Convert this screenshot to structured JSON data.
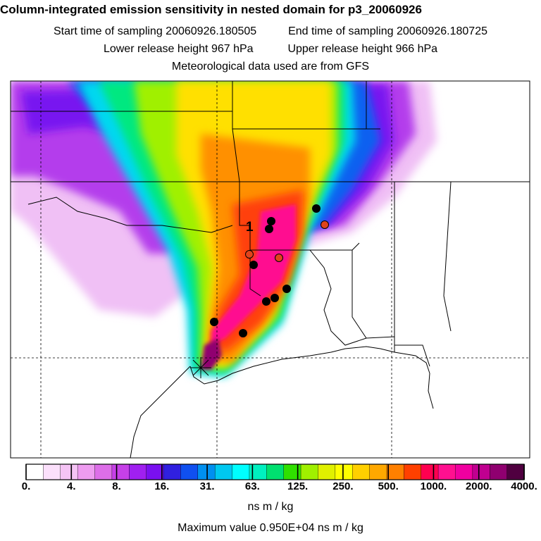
{
  "header": {
    "title": "Column-integrated emission sensitivity in nested domain for p3_20060926",
    "start_label": "Start time of sampling 20060926.180505",
    "end_label": "End time of sampling 20060926.180725",
    "lower_label": "Lower release height  967 hPa",
    "upper_label": "Upper release height  966 hPa",
    "met_label": "Meteorological data used are from GFS"
  },
  "map": {
    "marker_label": "1",
    "receptor_colors": {
      "black": "#000000",
      "red": "#e0441c"
    }
  },
  "colorbar": {
    "colors": [
      "#ffffff",
      "#fbe0fb",
      "#f5c4f5",
      "#ee9cf0",
      "#dd6ee8",
      "#c640e8",
      "#a020f0",
      "#7a10f0",
      "#3020e0",
      "#1050f0",
      "#0090f0",
      "#00c8f0",
      "#00ffff",
      "#00f0c0",
      "#00e070",
      "#30e000",
      "#a0f000",
      "#e0f000",
      "#ffff00",
      "#ffd000",
      "#ffa800",
      "#ff8000",
      "#ff4000",
      "#ff0050",
      "#ff1090",
      "#f000a0",
      "#c00090",
      "#900070",
      "#500040"
    ],
    "tick_labels": [
      "0.",
      "4.",
      "8.",
      "16.",
      "31.",
      "63.",
      "125.",
      "250.",
      "500.",
      "1000.",
      "2000.",
      "4000."
    ]
  },
  "units": "ns m / kg",
  "max_value": "Maximum value  0.950E+04 ns m / kg"
}
